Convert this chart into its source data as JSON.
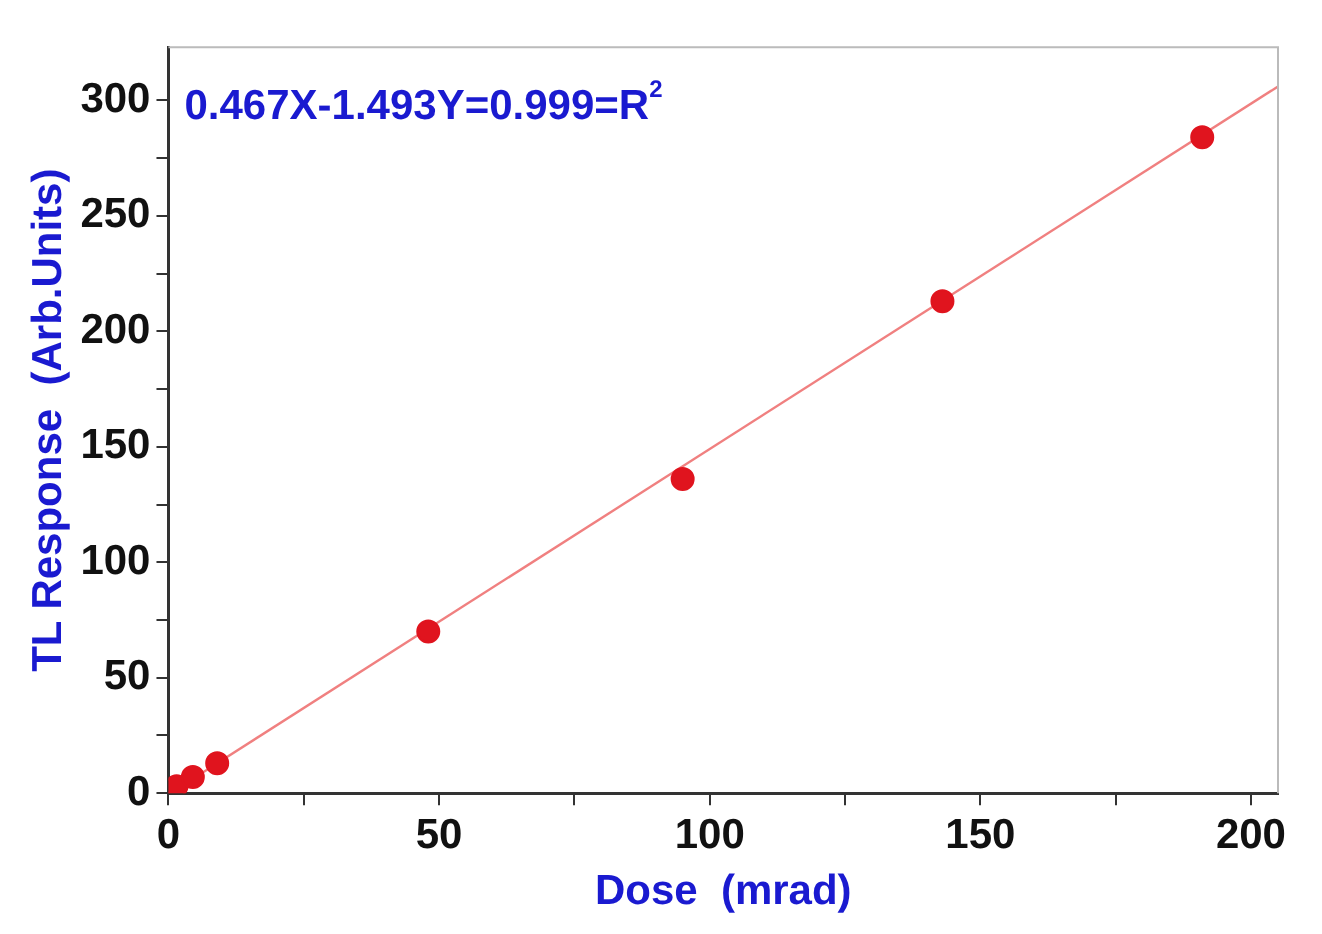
{
  "chart_data": {
    "type": "scatter",
    "xlabel": "Dose  (mrad)",
    "ylabel": "TL Response  (Arb.Units)",
    "annotations": [
      "0.467X-1.493Y=0.999=R$^{2}$"
    ],
    "series": [
      {
        "type": "scatter",
        "color": "#e0141e",
        "x": [
          1.5,
          4.5,
          9,
          48,
          95,
          143,
          191
        ],
        "values": [
          3,
          7,
          13,
          70,
          136,
          213,
          284
        ],
        "marker": "circle"
      },
      {
        "type": "line",
        "color": "#f08080",
        "x": [
          1,
          205
        ],
        "values": [
          1,
          306
        ],
        "marker": "none",
        "line_style": "solid"
      }
    ],
    "xlim": [
      0,
      205
    ],
    "ylim": [
      0,
      323
    ],
    "xticks": [
      0,
      {
        "value": 25,
        "label": null
      },
      50,
      {
        "value": 75,
        "label": null
      },
      100,
      {
        "value": 125,
        "label": null
      },
      150,
      {
        "value": 175,
        "label": null
      },
      200
    ],
    "yticks": [
      0,
      {
        "value": 25,
        "label": null
      },
      50,
      {
        "value": 75,
        "label": null
      },
      100,
      {
        "value": 125,
        "label": null
      },
      150,
      {
        "value": 175,
        "label": null
      },
      200,
      {
        "value": 225,
        "label": null
      },
      250,
      {
        "value": 275,
        "label": null
      },
      300
    ],
    "grid": false,
    "legend": false
  }
}
